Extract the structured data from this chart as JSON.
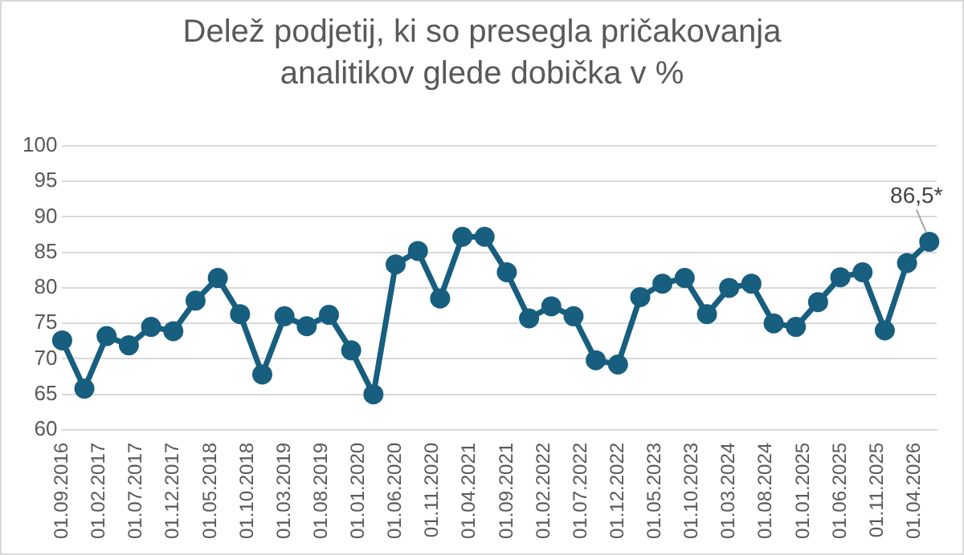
{
  "chart_data": {
    "type": "line",
    "title": "Delež podjetij, ki so presegla pričakovanja analitikov glede dobička v %",
    "x": [
      "2016-09",
      "2016-12",
      "2017-03",
      "2017-06",
      "2017-09",
      "2017-12",
      "2018-03",
      "2018-06",
      "2018-09",
      "2018-12",
      "2019-03",
      "2019-06",
      "2019-09",
      "2019-12",
      "2020-03",
      "2020-06",
      "2020-09",
      "2020-12",
      "2021-03",
      "2021-06",
      "2021-09",
      "2021-12",
      "2022-03",
      "2022-06",
      "2022-09",
      "2022-12",
      "2023-03",
      "2023-06",
      "2023-09",
      "2023-12",
      "2024-03",
      "2024-06",
      "2024-09",
      "2024-12",
      "2025-03",
      "2025-06",
      "2025-09",
      "2025-12",
      "2026-03",
      "2026-06"
    ],
    "series": [
      {
        "color": "#175e7f",
        "values": [
          72.6,
          65.8,
          73.2,
          71.9,
          74.5,
          73.9,
          78.2,
          81.4,
          76.3,
          67.8,
          76.0,
          74.6,
          76.2,
          71.2,
          65.0,
          83.3,
          85.2,
          78.5,
          87.2,
          87.2,
          82.2,
          75.7,
          77.4,
          76.0,
          69.8,
          69.2,
          78.7,
          80.6,
          81.4,
          76.3,
          80.0,
          80.6,
          75.0,
          74.5,
          78.0,
          81.5,
          82.2,
          74.0,
          83.5,
          86.5
        ]
      }
    ],
    "xlim": [
      "2016-09-01",
      "2026-07-01"
    ],
    "xticks": [
      {
        "value": "2016-09-01",
        "label": "01.09.2016"
      },
      {
        "value": "2017-02-01",
        "label": "01.02.2017"
      },
      {
        "value": "2017-07-01",
        "label": "01.07.2017"
      },
      {
        "value": "2017-12-01",
        "label": "01.12.2017"
      },
      {
        "value": "2018-05-01",
        "label": "01.05.2018"
      },
      {
        "value": "2018-10-01",
        "label": "01.10.2018"
      },
      {
        "value": "2019-03-01",
        "label": "01.03.2019"
      },
      {
        "value": "2019-08-01",
        "label": "01.08.2019"
      },
      {
        "value": "2020-01-01",
        "label": "01.01.2020"
      },
      {
        "value": "2020-06-01",
        "label": "01.06.2020"
      },
      {
        "value": "2020-11-01",
        "label": "01.11.2020"
      },
      {
        "value": "2021-04-01",
        "label": "01.04.2021"
      },
      {
        "value": "2021-09-01",
        "label": "01.09.2021"
      },
      {
        "value": "2022-02-01",
        "label": "01.02.2022"
      },
      {
        "value": "2022-07-01",
        "label": "01.07.2022"
      },
      {
        "value": "2022-12-01",
        "label": "01.12.2022"
      },
      {
        "value": "2023-05-01",
        "label": "01.05.2023"
      },
      {
        "value": "2023-10-01",
        "label": "01.10.2023"
      },
      {
        "value": "2024-03-01",
        "label": "01.03.2024"
      },
      {
        "value": "2024-08-01",
        "label": "01.08.2024"
      },
      {
        "value": "2025-01-01",
        "label": "01.01.2025"
      },
      {
        "value": "2025-06-01",
        "label": "01.06.2025"
      },
      {
        "value": "2025-11-01",
        "label": "01.11.2025"
      },
      {
        "value": "2026-04-01",
        "label": "01.04.2026"
      }
    ],
    "ylim": [
      60,
      100
    ],
    "yticks": [
      60,
      65,
      70,
      75,
      80,
      85,
      90,
      95,
      100
    ],
    "grid": "y",
    "legend": false,
    "marker": "circle",
    "line_style": "solid",
    "annotations": [
      {
        "text": "86,5*",
        "x": "2026-06",
        "y": 86.5
      }
    ]
  }
}
